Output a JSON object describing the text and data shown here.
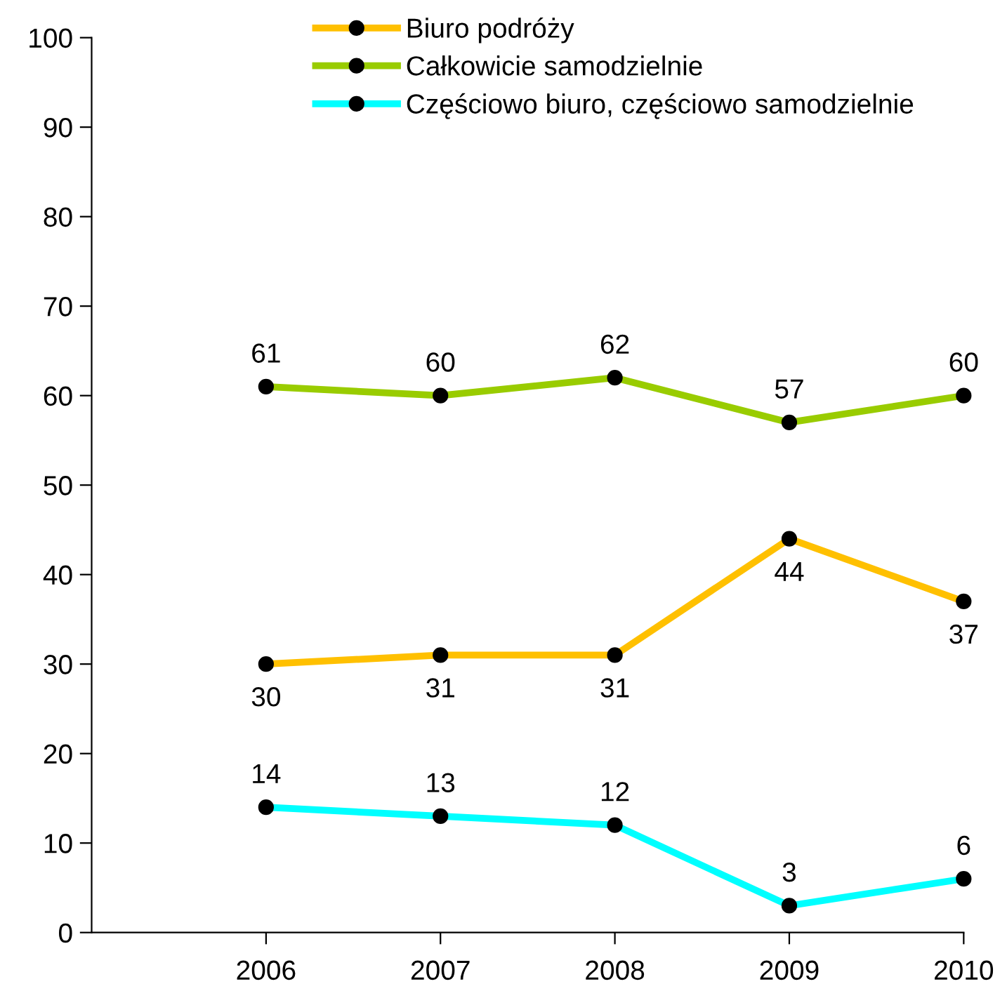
{
  "chart_data": {
    "type": "line",
    "x": [
      2006,
      2007,
      2008,
      2009,
      2010
    ],
    "xlim": [
      2005,
      2010
    ],
    "xticks": [
      2006,
      2007,
      2008,
      2009,
      2010
    ],
    "ylim": [
      0,
      100
    ],
    "yticks": [
      0,
      10,
      20,
      30,
      40,
      50,
      60,
      70,
      80,
      90,
      100
    ],
    "grid": false,
    "legend": "top",
    "marker": "circle",
    "line_style": "solid",
    "data_labels": true,
    "series": [
      {
        "name": "Biuro podróży",
        "color": "#ffc000",
        "values": [
          30,
          31,
          31,
          44,
          37
        ]
      },
      {
        "name": "Całkowicie samodzielnie",
        "color": "#99cc00",
        "values": [
          61,
          60,
          62,
          57,
          60
        ]
      },
      {
        "name": "Częściowo biuro, częściowo samodzielnie",
        "color": "#00ffff",
        "values": [
          14,
          13,
          12,
          3,
          6
        ]
      }
    ]
  }
}
